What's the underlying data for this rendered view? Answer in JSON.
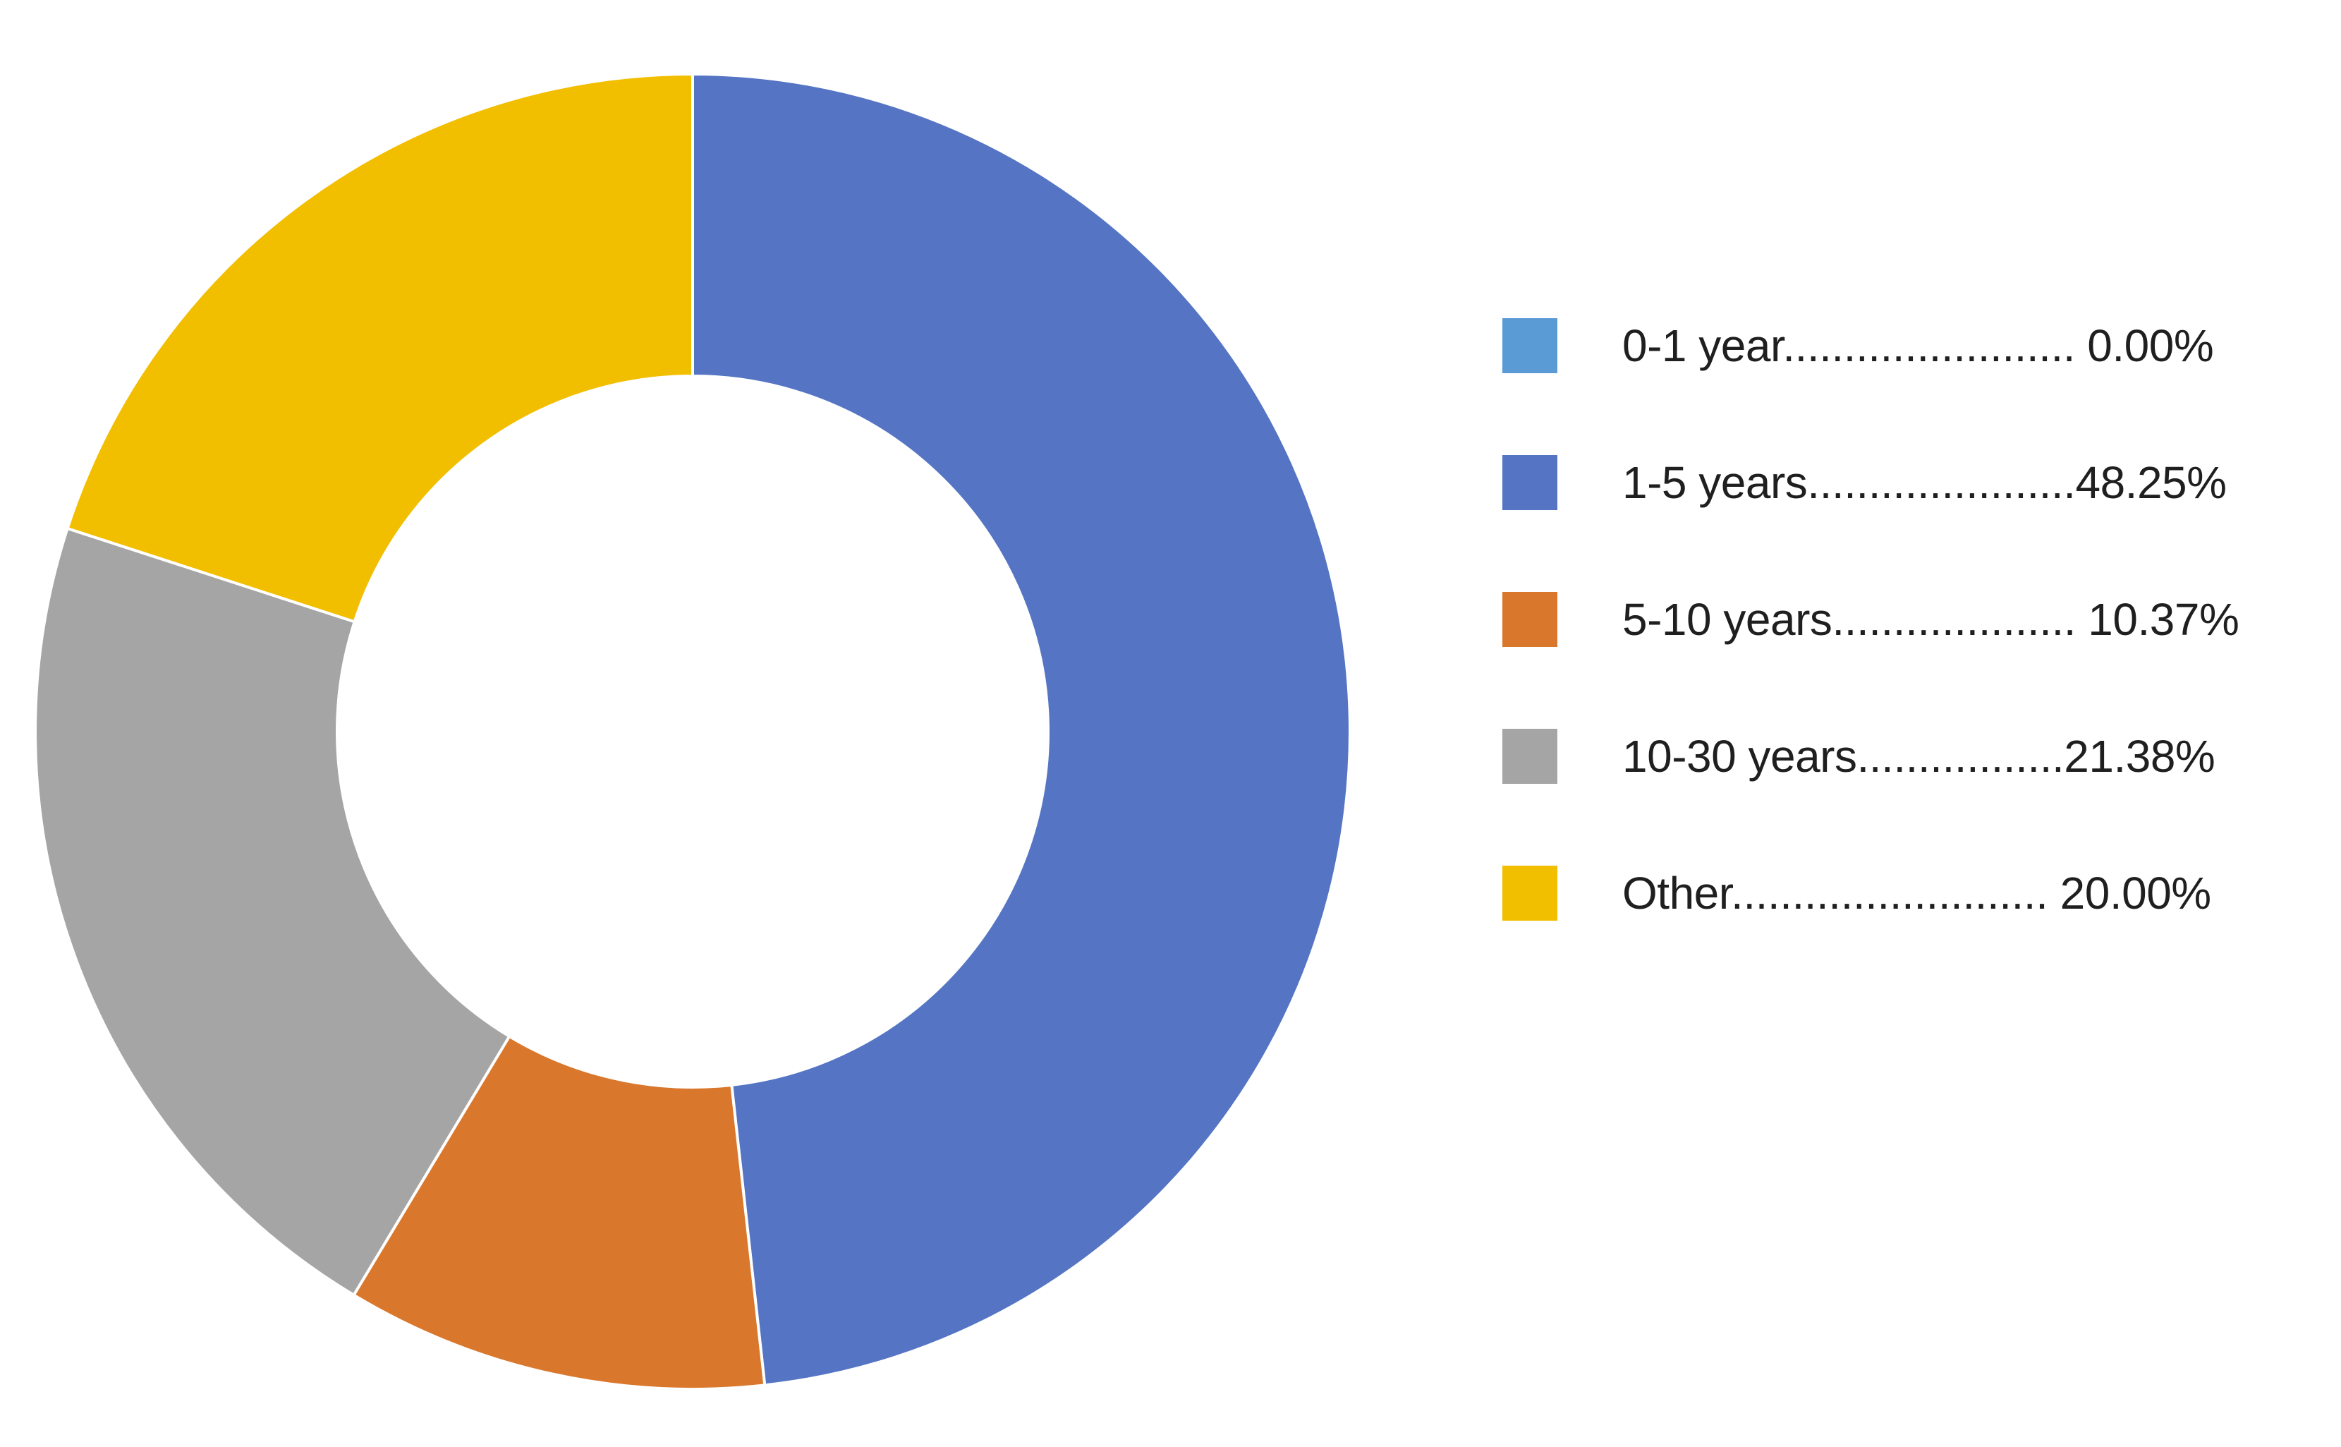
{
  "chart_data": {
    "type": "pie",
    "donut": true,
    "title": "",
    "slices": [
      {
        "label": "0-1 year",
        "value": 0.0,
        "display": "0-1 year........................ 0.00%",
        "color": "#5B9BD5"
      },
      {
        "label": "1-5 years",
        "value": 48.25,
        "display": "1-5 years......................48.25%",
        "color": "#5575C4"
      },
      {
        "label": "5-10 years",
        "value": 10.37,
        "display": "5-10 years.................... 10.37%",
        "color": "#D9782D"
      },
      {
        "label": "10-30 years",
        "value": 21.38,
        "display": "10-30 years.................21.38%",
        "color": "#A5A5A5"
      },
      {
        "label": "Other",
        "value": 20.0,
        "display": "Other.......................... 20.00%",
        "color": "#F2BE00"
      }
    ],
    "legend_position": "right",
    "start_angle": "12 o'clock, clockwise"
  }
}
